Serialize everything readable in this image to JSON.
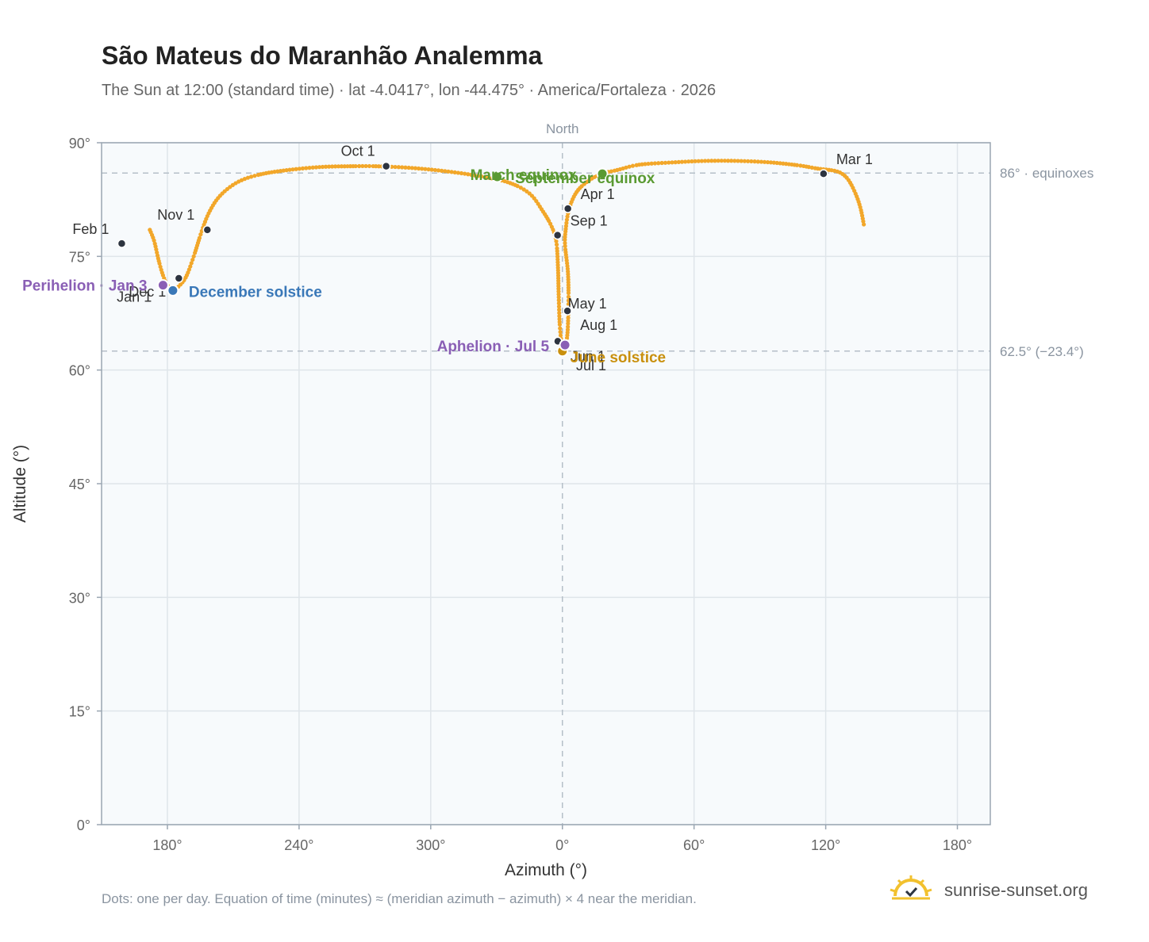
{
  "title": "São Mateus do Maranhão Analemma",
  "subtitle": "The Sun at 12:00 (standard time) · lat -4.0417°, lon -44.475° · America/Fortaleza · 2026",
  "footnote": "Dots: one per day. Equation of time (minutes) ≈ (meridian azimuth − azimuth) × 4 near the meridian.",
  "brand": {
    "name": "sunrise-sunset.org",
    "icon": "sun-logo-icon"
  },
  "chart_data": {
    "type": "scatter",
    "xlabel": "Azimuth (°)",
    "ylabel": "Altitude (°)",
    "x_axis_note": "x axis is azimuth unwrapped across north: 180° (south) → 360°/0° (north) → 180° (south)",
    "xlim": [
      150,
      555
    ],
    "ylim": [
      0,
      90
    ],
    "x_ticks": [
      {
        "value": 180,
        "label": "180°"
      },
      {
        "value": 240,
        "label": "240°"
      },
      {
        "value": 300,
        "label": "300°"
      },
      {
        "value": 360,
        "label": "0°"
      },
      {
        "value": 420,
        "label": "60°"
      },
      {
        "value": 480,
        "label": "120°"
      },
      {
        "value": 540,
        "label": "180°"
      }
    ],
    "y_ticks": [
      {
        "value": 0,
        "label": "0°"
      },
      {
        "value": 15,
        "label": "15°"
      },
      {
        "value": 30,
        "label": "30°"
      },
      {
        "value": 45,
        "label": "45°"
      },
      {
        "value": 60,
        "label": "60°"
      },
      {
        "value": 75,
        "label": "75°"
      },
      {
        "value": 90,
        "label": "90°"
      }
    ],
    "grid": true,
    "meridian": {
      "x": 360,
      "label": "North"
    },
    "reference_lines": [
      {
        "y": 86,
        "label": "86° · equinoxes"
      },
      {
        "y": 62.5,
        "label": "62.5° (−23.4°)"
      }
    ],
    "analemma_path": [
      [
        172.0,
        78.5
      ],
      [
        174.0,
        77.0
      ],
      [
        176.0,
        74.5
      ],
      [
        178.0,
        72.5
      ],
      [
        180.0,
        71.2
      ],
      [
        182.5,
        70.5
      ],
      [
        185.0,
        71.0
      ],
      [
        188.5,
        72.3
      ],
      [
        192.0,
        75.0
      ],
      [
        195.5,
        78.2
      ],
      [
        199.0,
        80.8
      ],
      [
        204.0,
        83.0
      ],
      [
        212.0,
        84.8
      ],
      [
        222.0,
        85.8
      ],
      [
        235.0,
        86.4
      ],
      [
        250.0,
        86.8
      ],
      [
        264.0,
        86.9
      ],
      [
        275.0,
        86.9
      ],
      [
        290.0,
        86.7
      ],
      [
        305.0,
        86.3
      ],
      [
        320.0,
        85.7
      ],
      [
        335.0,
        84.8
      ],
      [
        345.0,
        83.3
      ],
      [
        351.0,
        81.0
      ],
      [
        355.0,
        79.0
      ],
      [
        357.2,
        77.0
      ],
      [
        358.0,
        73.5
      ],
      [
        358.3,
        70.0
      ],
      [
        358.8,
        66.0
      ],
      [
        359.8,
        63.3
      ],
      [
        361.2,
        62.9
      ],
      [
        362.2,
        64.5
      ],
      [
        362.6,
        66.5
      ],
      [
        362.8,
        69.5
      ],
      [
        362.5,
        73.0
      ],
      [
        361.2,
        76.5
      ],
      [
        361.5,
        78.5
      ],
      [
        363.0,
        81.2
      ],
      [
        366.5,
        83.5
      ],
      [
        372.0,
        85.0
      ],
      [
        378.0,
        85.9
      ],
      [
        385.0,
        86.4
      ],
      [
        395.0,
        87.1
      ],
      [
        410.0,
        87.4
      ],
      [
        425.0,
        87.6
      ],
      [
        440.0,
        87.6
      ],
      [
        455.0,
        87.4
      ],
      [
        468.0,
        87.0
      ],
      [
        476.0,
        86.6
      ],
      [
        484.0,
        86.3
      ],
      [
        488.0,
        85.8
      ],
      [
        491.0,
        84.8
      ],
      [
        494.0,
        83.0
      ],
      [
        496.0,
        81.2
      ],
      [
        497.5,
        79.0
      ]
    ],
    "month_markers": [
      {
        "label": "Jan 1",
        "x": 177.2,
        "y": 71.1
      },
      {
        "label": "Feb 1",
        "x": 159.2,
        "y": 76.7
      },
      {
        "label": "Mar 1",
        "x": 479.0,
        "y": 85.9
      },
      {
        "label": "Apr 1",
        "x": 362.5,
        "y": 81.3
      },
      {
        "label": "May 1",
        "x": 362.5,
        "y": 67.9
      },
      {
        "label": "Jun 1",
        "x": 357.9,
        "y": 63.8
      },
      {
        "label": "Jul 1",
        "x": 360.1,
        "y": 62.8
      },
      {
        "label": "Aug 1",
        "x": 362.3,
        "y": 67.8
      },
      {
        "label": "Sep 1",
        "x": 357.8,
        "y": 77.8
      },
      {
        "label": "Oct 1",
        "x": 279.7,
        "y": 86.9
      },
      {
        "label": "Nov 1",
        "x": 198.2,
        "y": 78.5
      },
      {
        "label": "Dec 1",
        "x": 185.2,
        "y": 72.1
      }
    ],
    "events": [
      {
        "label": "March equinox",
        "x": 330.3,
        "y": 85.5,
        "color": "#5a9a32"
      },
      {
        "label": "September equinox",
        "x": 378.2,
        "y": 85.9,
        "color": "#5a9a32"
      },
      {
        "label": "June solstice",
        "x": 360.0,
        "y": 62.5,
        "color": "#c9900e"
      },
      {
        "label": "December solstice",
        "x": 182.5,
        "y": 70.5,
        "color": "#3a78b8"
      },
      {
        "label": "Perihelion · Jan 3",
        "x": 178.0,
        "y": 71.2,
        "color": "#8a5fb5"
      },
      {
        "label": "Aphelion · Jul 5",
        "x": 361.2,
        "y": 63.3,
        "color": "#8a5fb5"
      }
    ],
    "colors": {
      "analemma": "#f2a72a",
      "month_marker": "#2d3440",
      "plot_background": "#f7fafc",
      "grid": "#dfe5ea",
      "frame": "#9aa6b2",
      "reference_line": "#b5bfc8"
    }
  }
}
